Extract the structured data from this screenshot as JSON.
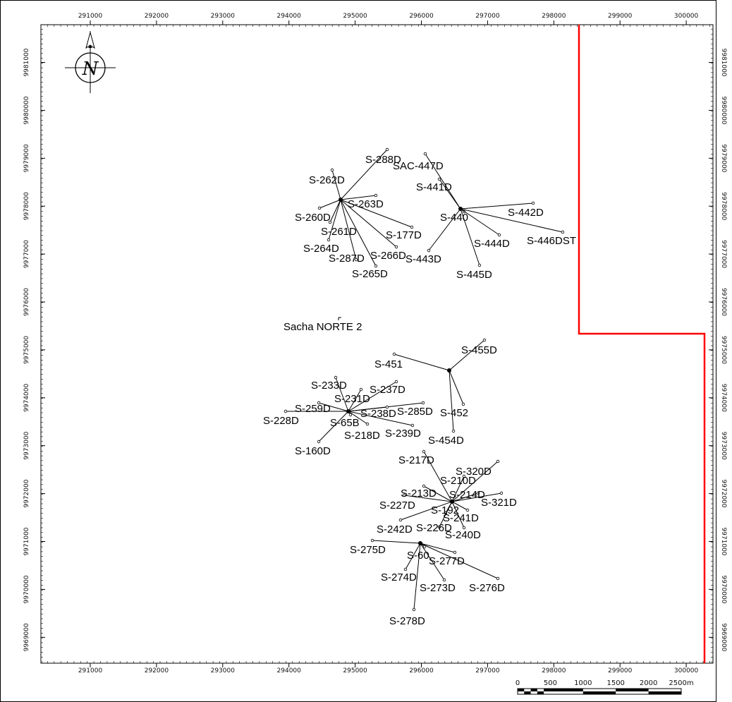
{
  "map": {
    "field_label": "Sacha NORTE 2",
    "concession_color": "#ff0000",
    "frame_color": "#000000",
    "x_ticks": [
      "291000",
      "292000",
      "293000",
      "294000",
      "295000",
      "296000",
      "297000",
      "298000",
      "299000",
      "300000"
    ],
    "y_ticks_left": [
      "9981000",
      "9980000",
      "9979000",
      "9978000",
      "9977000",
      "9976000",
      "9975000",
      "9974000",
      "9973000",
      "9972000",
      "9971000",
      "9970000",
      "9969000"
    ],
    "y_ticks_right": [
      "9981000",
      "9980000",
      "9979000",
      "9978000",
      "9977000",
      "9976000",
      "9975000",
      "9974000",
      "9973000",
      "9972000",
      "9971000",
      "9970000",
      "9969000"
    ],
    "north_arrow": {
      "icon": "north-arrow-icon",
      "letter": "N"
    },
    "scale_bar": {
      "labels": [
        "0",
        "500",
        "1000",
        "1500",
        "2000",
        "2500m"
      ]
    },
    "wells": [
      {
        "name": "S-288D"
      },
      {
        "name": "SAC-447D"
      },
      {
        "name": "S-262D"
      },
      {
        "name": "S-441D"
      },
      {
        "name": "S-263D"
      },
      {
        "name": "S-442D"
      },
      {
        "name": "S-260D"
      },
      {
        "name": "S-440"
      },
      {
        "name": "S-261D"
      },
      {
        "name": "S-177D"
      },
      {
        "name": "S-444D"
      },
      {
        "name": "S-446DST"
      },
      {
        "name": "S-264D"
      },
      {
        "name": "S-266D"
      },
      {
        "name": "S-287D"
      },
      {
        "name": "S-443D"
      },
      {
        "name": "S-265D"
      },
      {
        "name": "S-445D"
      },
      {
        "name": "S-455D"
      },
      {
        "name": "S-451"
      },
      {
        "name": "S-233D"
      },
      {
        "name": "S-237D"
      },
      {
        "name": "S-231D"
      },
      {
        "name": "S-259D"
      },
      {
        "name": "S-285D"
      },
      {
        "name": "S-452"
      },
      {
        "name": "S-238D"
      },
      {
        "name": "S-228D"
      },
      {
        "name": "S-65B"
      },
      {
        "name": "S-218D"
      },
      {
        "name": "S-239D"
      },
      {
        "name": "S-454D"
      },
      {
        "name": "S-160D"
      },
      {
        "name": "S-217D"
      },
      {
        "name": "S-320D"
      },
      {
        "name": "S-210D"
      },
      {
        "name": "S-213D"
      },
      {
        "name": "S-214D"
      },
      {
        "name": "S-321D"
      },
      {
        "name": "S-227D"
      },
      {
        "name": "S-192"
      },
      {
        "name": "S-241D"
      },
      {
        "name": "S-242D"
      },
      {
        "name": "S-226D"
      },
      {
        "name": "S-240D"
      },
      {
        "name": "S-275D"
      },
      {
        "name": "S-60"
      },
      {
        "name": "S-277D"
      },
      {
        "name": "S-274D"
      },
      {
        "name": "S-273D"
      },
      {
        "name": "S-276D"
      },
      {
        "name": "S-278D"
      }
    ]
  }
}
